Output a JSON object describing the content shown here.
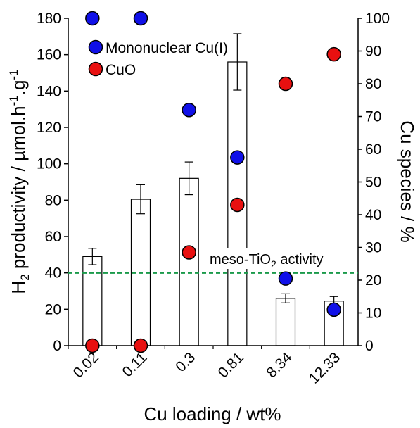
{
  "chart_data": {
    "type": "bar",
    "categories": [
      "0.02",
      "0.11",
      "0.3",
      "0.81",
      "8.34",
      "12.33"
    ],
    "xlabel": "Cu loading / wt%",
    "ylabel": {
      "prefix": "H",
      "sub": "2",
      "text": " productivity / µmol.h",
      "sup1": "-1",
      "mid": ".g",
      "sup2": "-1"
    },
    "y2label": "Cu species / %",
    "ylim": [
      0,
      180
    ],
    "y2lim": [
      0,
      100
    ],
    "yticks": [
      "0",
      "20",
      "40",
      "60",
      "80",
      "100",
      "120",
      "140",
      "160",
      "180"
    ],
    "y2ticks": [
      "0",
      "10",
      "20",
      "30",
      "40",
      "50",
      "60",
      "70",
      "80",
      "90",
      "100"
    ],
    "bars": {
      "values": [
        49,
        80.5,
        92,
        156,
        26,
        24.5
      ],
      "errors": [
        4.5,
        8,
        9,
        15.5,
        2.5,
        2.5
      ],
      "fill": "#ffffff",
      "stroke": "#000000"
    },
    "series": [
      {
        "name": "Mononuclear Cu(I)",
        "axis": "right",
        "color": "#1010e8",
        "values": [
          100,
          100,
          72,
          57.5,
          20.5,
          11
        ]
      },
      {
        "name": "CuO",
        "axis": "right",
        "color": "#e81010",
        "values": [
          0,
          0,
          28.5,
          43,
          80,
          89
        ]
      }
    ],
    "reference_line": {
      "value": 40,
      "axis": "left",
      "color": "#1a9a4a",
      "label": {
        "prefix": "meso-TiO",
        "sub": "2",
        "suffix": " activity"
      }
    },
    "legend_position": "top-left",
    "grid": false
  }
}
